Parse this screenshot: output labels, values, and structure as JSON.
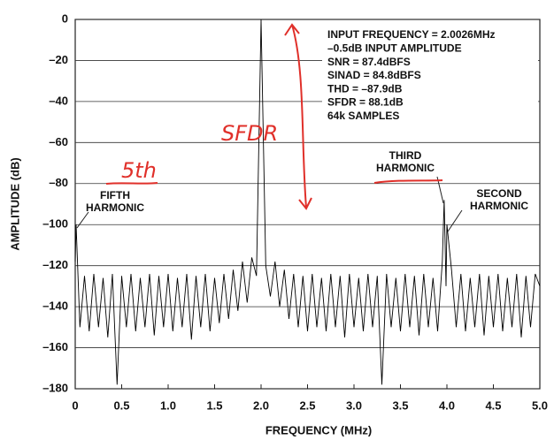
{
  "chart_data": {
    "type": "line",
    "xlabel": "FREQUENCY (MHz)",
    "ylabel": "AMPLITUDE (dB)",
    "color": "#000000",
    "grid": true,
    "xlim": [
      0,
      5
    ],
    "ylim": [
      -180,
      0
    ],
    "xticks": [
      0,
      0.5,
      {
        "value": 1,
        "label": "1.0"
      },
      1.5,
      {
        "value": 2,
        "label": "2.0"
      },
      2.5,
      {
        "value": 3,
        "label": "3.0"
      },
      3.5,
      {
        "value": 4,
        "label": "4.0"
      },
      4.5,
      {
        "value": 5,
        "label": "5.0"
      }
    ],
    "yticks": [
      0,
      {
        "value": -20,
        "label": "–20"
      },
      {
        "value": -40,
        "label": "–40"
      },
      {
        "value": -60,
        "label": "–60"
      },
      {
        "value": -80,
        "label": "–80"
      },
      {
        "value": -100,
        "label": "–100"
      },
      {
        "value": -120,
        "label": "–120"
      },
      {
        "value": -140,
        "label": "–140"
      },
      {
        "value": -160,
        "label": "–160"
      },
      {
        "value": -180,
        "label": "–180"
      }
    ],
    "info": [
      "INPUT FREQUENCY = 2.0026MHz",
      "–0.5dB INPUT AMPLITUDE",
      "SNR = 87.4dBFS",
      "SINAD = 84.8dBFS",
      "THD = –87.9dB",
      "SFDR = 88.1dB",
      "64k SAMPLES"
    ],
    "annotations": [
      {
        "lines": [
          "FIFTH",
          "HARMONIC"
        ]
      },
      {
        "lines": [
          "THIRD",
          "HARMONIC"
        ]
      },
      {
        "lines": [
          "SECOND",
          "HARMONIC"
        ]
      }
    ],
    "handwriting": [
      "SFDR",
      "5th"
    ],
    "x": [
      0,
      0.01,
      0.05,
      0.1,
      0.15,
      0.2,
      0.25,
      0.3,
      0.35,
      0.4,
      0.45,
      0.5,
      0.55,
      0.6,
      0.65,
      0.7,
      0.75,
      0.8,
      0.85,
      0.9,
      0.95,
      1,
      1.05,
      1.1,
      1.15,
      1.2,
      1.25,
      1.3,
      1.35,
      1.4,
      1.45,
      1.5,
      1.55,
      1.6,
      1.65,
      1.7,
      1.75,
      1.8,
      1.85,
      1.9,
      1.95,
      2,
      2.05,
      2.1,
      2.15,
      2.2,
      2.25,
      2.3,
      2.35,
      2.4,
      2.45,
      2.5,
      2.55,
      2.6,
      2.65,
      2.7,
      2.75,
      2.8,
      2.85,
      2.9,
      2.95,
      3,
      3.05,
      3.1,
      3.15,
      3.2,
      3.25,
      3.3,
      3.35,
      3.4,
      3.45,
      3.5,
      3.55,
      3.6,
      3.65,
      3.7,
      3.75,
      3.8,
      3.85,
      3.9,
      3.95,
      3.97,
      3.99,
      4,
      4.05,
      4.1,
      4.15,
      4.2,
      4.25,
      4.3,
      4.35,
      4.4,
      4.45,
      4.5,
      4.55,
      4.6,
      4.65,
      4.7,
      4.75,
      4.8,
      4.85,
      4.9,
      4.95,
      5
    ],
    "values": [
      -118,
      -100,
      -150,
      -125,
      -152,
      -124,
      -150,
      -126,
      -155,
      -124,
      -178,
      -125,
      -150,
      -124,
      -152,
      -126,
      -150,
      -124,
      -154,
      -125,
      -150,
      -124,
      -152,
      -126,
      -150,
      -124,
      -156,
      -125,
      -150,
      -124,
      -152,
      -126,
      -148,
      -124,
      -146,
      -122,
      -142,
      -118,
      -138,
      -116,
      -125,
      0,
      -120,
      -135,
      -118,
      -140,
      -122,
      -146,
      -124,
      -150,
      -125,
      -152,
      -124,
      -150,
      -126,
      -152,
      -124,
      -150,
      -125,
      -155,
      -124,
      -150,
      -126,
      -152,
      -124,
      -150,
      -125,
      -178,
      -124,
      -150,
      -126,
      -152,
      -124,
      -150,
      -125,
      -154,
      -124,
      -150,
      -126,
      -152,
      -118,
      -88,
      -130,
      -100,
      -122,
      -150,
      -124,
      -152,
      -126,
      -150,
      -124,
      -154,
      -125,
      -150,
      -124,
      -152,
      -126,
      -150,
      -124,
      -155,
      -125,
      -150,
      -124,
      -130
    ]
  }
}
